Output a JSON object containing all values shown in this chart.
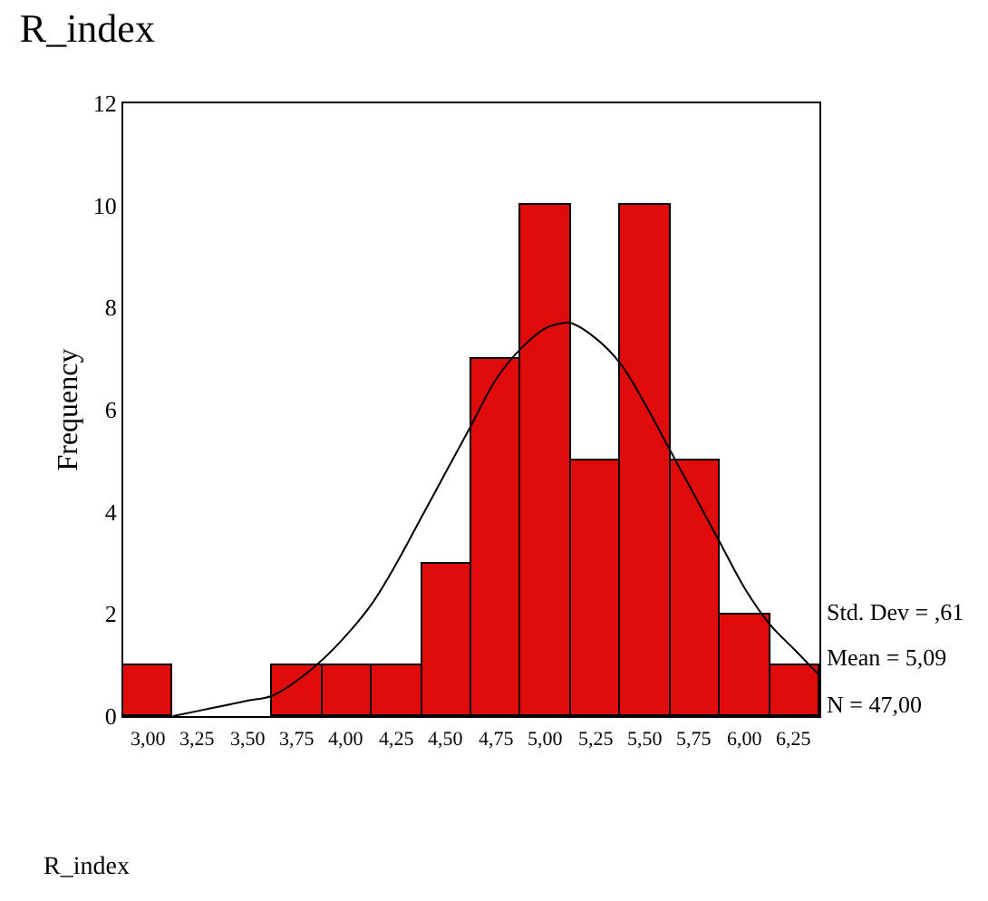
{
  "chart_data": {
    "type": "histogram",
    "title": "R_index",
    "ylabel": "Frequency",
    "bins": [
      2.875,
      3.125,
      3.375,
      3.625,
      3.875,
      4.125,
      4.375,
      4.625,
      4.875,
      5.125,
      5.375,
      5.625,
      5.875,
      6.125,
      6.375
    ],
    "values": [
      1,
      0,
      0,
      1,
      1,
      1,
      3,
      7,
      10,
      5,
      10,
      5,
      2,
      1
    ],
    "color": "#e00b0b",
    "series": [
      {
        "type": "line",
        "color": "#000000",
        "x": [
          3.125,
          3.25,
          3.375,
          3.5,
          3.625,
          3.75,
          3.875,
          4.0,
          4.125,
          4.25,
          4.375,
          4.5,
          4.625,
          4.75,
          4.875,
          5.0,
          5.09,
          5.125,
          5.25,
          5.375,
          5.5,
          5.625,
          5.75,
          5.875,
          6.0,
          6.125,
          6.25,
          6.375
        ],
        "values": [
          0.0,
          0.1,
          0.2,
          0.3,
          0.4,
          0.7,
          1.1,
          1.6,
          2.2,
          3.0,
          3.9,
          4.8,
          5.7,
          6.6,
          7.2,
          7.6,
          7.7,
          7.7,
          7.4,
          6.9,
          6.1,
          5.2,
          4.3,
          3.4,
          2.5,
          1.8,
          1.3,
          0.8
        ]
      }
    ],
    "xlim": [
      2.875,
      6.375
    ],
    "xticks": [
      {
        "value": 3.0,
        "label": "3,00"
      },
      {
        "value": 3.25,
        "label": "3,25"
      },
      {
        "value": 3.5,
        "label": "3,50"
      },
      {
        "value": 3.75,
        "label": "3,75"
      },
      {
        "value": 4.0,
        "label": "4,00"
      },
      {
        "value": 4.25,
        "label": "4,25"
      },
      {
        "value": 4.5,
        "label": "4,50"
      },
      {
        "value": 4.75,
        "label": "4,75"
      },
      {
        "value": 5.0,
        "label": "5,00"
      },
      {
        "value": 5.25,
        "label": "5,25"
      },
      {
        "value": 5.5,
        "label": "5,50"
      },
      {
        "value": 5.75,
        "label": "5,75"
      },
      {
        "value": 6.0,
        "label": "6,00"
      },
      {
        "value": 6.25,
        "label": "6,25"
      }
    ],
    "ylim": [
      0,
      12
    ],
    "yticks": [
      0,
      2,
      4,
      6,
      8,
      10,
      12
    ],
    "marker": "none",
    "line_style": "solid",
    "annotations": [
      "Std. Dev = ,61",
      "Mean = 5,09",
      "N = 47,00",
      "R_index"
    ]
  }
}
